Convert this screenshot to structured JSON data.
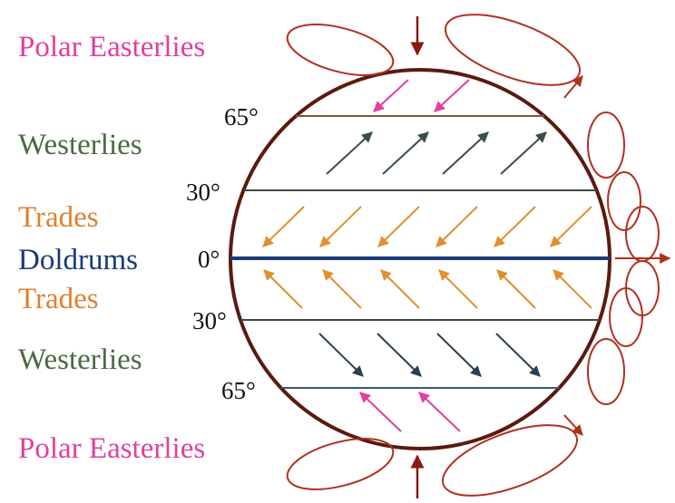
{
  "belts": [
    "Polar Easterlies",
    "Westerlies",
    "Trades",
    "Doldrums",
    "Trades",
    "Westerlies",
    "Polar Easterlies"
  ],
  "latitudes": [
    "65°",
    "30°",
    "0°",
    "30°",
    "65°"
  ]
}
